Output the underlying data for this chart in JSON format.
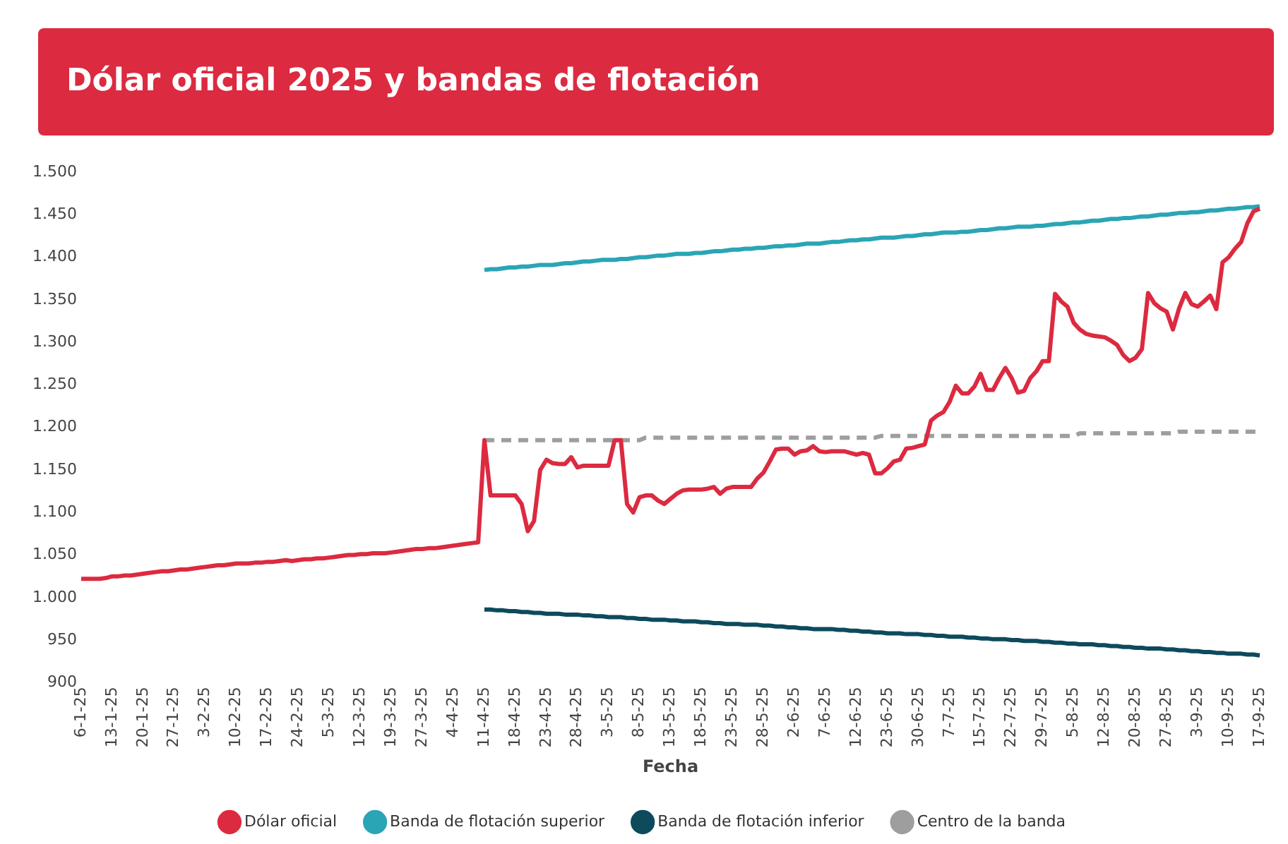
{
  "chart_data": {
    "type": "line",
    "title": "Dólar oficial 2025 y bandas de flotación",
    "xlabel": "Fecha",
    "categories": [
      "6-1-25",
      null,
      null,
      null,
      null,
      "13-1-25",
      null,
      null,
      null,
      null,
      "20-1-25",
      null,
      null,
      null,
      null,
      "27-1-25",
      null,
      null,
      null,
      null,
      "3-2-25",
      null,
      null,
      null,
      null,
      "10-2-25",
      null,
      null,
      null,
      null,
      "17-2-25",
      null,
      null,
      null,
      null,
      "24-2-25",
      null,
      null,
      null,
      null,
      "5-3-25",
      null,
      null,
      null,
      null,
      "12-3-25",
      null,
      null,
      null,
      null,
      "19-3-25",
      null,
      null,
      null,
      null,
      "27-3-25",
      null,
      null,
      null,
      null,
      "4-4-25",
      null,
      null,
      null,
      null,
      "11-4-25",
      null,
      null,
      null,
      null,
      "18-4-25",
      null,
      null,
      null,
      null,
      "23-4-25",
      null,
      null,
      null,
      null,
      "28-4-25",
      null,
      null,
      null,
      null,
      "3-5-25",
      null,
      null,
      null,
      null,
      "8-5-25",
      null,
      null,
      null,
      null,
      "13-5-25",
      null,
      null,
      null,
      null,
      "18-5-25",
      null,
      null,
      null,
      null,
      "23-5-25",
      null,
      null,
      null,
      null,
      "28-5-25",
      null,
      null,
      null,
      null,
      "2-6-25",
      null,
      null,
      null,
      null,
      "7-6-25",
      null,
      null,
      null,
      null,
      "12-6-25",
      null,
      null,
      null,
      null,
      "23-6-25",
      null,
      null,
      null,
      null,
      "30-6-25",
      null,
      null,
      null,
      null,
      "7-7-25",
      null,
      null,
      null,
      null,
      "15-7-25",
      null,
      null,
      null,
      null,
      "22-7-25",
      null,
      null,
      null,
      null,
      "29-7-25",
      null,
      null,
      null,
      null,
      "5-8-25",
      null,
      null,
      null,
      null,
      "12-8-25",
      null,
      null,
      null,
      null,
      "20-8-25",
      null,
      null,
      null,
      null,
      "27-8-25",
      null,
      null,
      null,
      null,
      "3-9-25",
      null,
      null,
      null,
      null,
      "10-9-25",
      null,
      null,
      null,
      null,
      "17-9-25"
    ],
    "ylim": [
      900,
      1500
    ],
    "yticks": [
      {
        "value": 900,
        "label": "900"
      },
      {
        "value": 950,
        "label": "950"
      },
      {
        "value": 1000,
        "label": "1.000"
      },
      {
        "value": 1050,
        "label": "1.050"
      },
      {
        "value": 1100,
        "label": "1.100"
      },
      {
        "value": 1150,
        "label": "1.150"
      },
      {
        "value": 1200,
        "label": "1.200"
      },
      {
        "value": 1250,
        "label": "1.250"
      },
      {
        "value": 1300,
        "label": "1.300"
      },
      {
        "value": 1350,
        "label": "1.350"
      },
      {
        "value": 1400,
        "label": "1.400"
      },
      {
        "value": 1450,
        "label": "1.450"
      },
      {
        "value": 1500,
        "label": "1.500"
      }
    ],
    "legend": "bottom",
    "series": [
      {
        "name": "Dólar oficial",
        "color": "#dc2a40",
        "line_style": "solid",
        "values": [
          1022,
          1022,
          1022,
          1022,
          1023,
          1025,
          1025,
          1026,
          1026,
          1027,
          1028,
          1029,
          1030,
          1031,
          1031,
          1032,
          1033,
          1033,
          1034,
          1035,
          1036,
          1037,
          1038,
          1038,
          1039,
          1040,
          1040,
          1040,
          1041,
          1041,
          1042,
          1042,
          1043,
          1044,
          1043,
          1044,
          1045,
          1045,
          1046,
          1046,
          1047,
          1048,
          1049,
          1050,
          1050,
          1051,
          1051,
          1052,
          1052,
          1052,
          1053,
          1054,
          1055,
          1056,
          1057,
          1057,
          1058,
          1058,
          1059,
          1060,
          1061,
          1062,
          1063,
          1064,
          1065,
          1185,
          1120,
          1120,
          1120,
          1120,
          1120,
          1110,
          1078,
          1090,
          1150,
          1162,
          1158,
          1157,
          1157,
          1165,
          1153,
          1155,
          1155,
          1155,
          1155,
          1155,
          1185,
          1185,
          1110,
          1100,
          1118,
          1120,
          1120,
          1114,
          1110,
          1116,
          1122,
          1126,
          1127,
          1127,
          1127,
          1128,
          1130,
          1122,
          1128,
          1130,
          1130,
          1130,
          1130,
          1140,
          1147,
          1160,
          1174,
          1175,
          1175,
          1168,
          1172,
          1173,
          1178,
          1172,
          1171,
          1172,
          1172,
          1172,
          1170,
          1168,
          1170,
          1168,
          1146,
          1146,
          1152,
          1160,
          1162,
          1175,
          1176,
          1178,
          1180,
          1208,
          1214,
          1218,
          1230,
          1249,
          1240,
          1240,
          1248,
          1263,
          1244,
          1244,
          1258,
          1270,
          1258,
          1241,
          1243,
          1258,
          1266,
          1278,
          1278,
          1357,
          1348,
          1342,
          1323,
          1315,
          1310,
          1308,
          1307,
          1306,
          1302,
          1297,
          1285,
          1278,
          1282,
          1292,
          1358,
          1346,
          1340,
          1336,
          1315,
          1340,
          1358,
          1345,
          1342,
          1348,
          1355,
          1339,
          1394,
          1400,
          1410,
          1418,
          1440,
          1454,
          1457
        ]
      },
      {
        "name": "Banda de flotación superior",
        "color": "#2aa5b5",
        "line_style": "solid",
        "values": [
          null,
          null,
          null,
          null,
          null,
          null,
          null,
          null,
          null,
          null,
          null,
          null,
          null,
          null,
          null,
          null,
          null,
          null,
          null,
          null,
          null,
          null,
          null,
          null,
          null,
          null,
          null,
          null,
          null,
          null,
          null,
          null,
          null,
          null,
          null,
          null,
          null,
          null,
          null,
          null,
          null,
          null,
          null,
          null,
          null,
          null,
          null,
          null,
          null,
          null,
          null,
          null,
          null,
          null,
          null,
          null,
          null,
          null,
          null,
          null,
          null,
          null,
          null,
          null,
          null,
          1385,
          1386,
          1386,
          1387,
          1388,
          1388,
          1389,
          1389,
          1390,
          1391,
          1391,
          1391,
          1392,
          1393,
          1393,
          1394,
          1395,
          1395,
          1396,
          1397,
          1397,
          1397,
          1398,
          1398,
          1399,
          1400,
          1400,
          1401,
          1402,
          1402,
          1403,
          1404,
          1404,
          1404,
          1405,
          1405,
          1406,
          1407,
          1407,
          1408,
          1409,
          1409,
          1410,
          1410,
          1411,
          1411,
          1412,
          1413,
          1413,
          1414,
          1414,
          1415,
          1416,
          1416,
          1416,
          1417,
          1418,
          1418,
          1419,
          1420,
          1420,
          1421,
          1421,
          1422,
          1423,
          1423,
          1423,
          1424,
          1425,
          1425,
          1426,
          1427,
          1427,
          1428,
          1429,
          1429,
          1429,
          1430,
          1430,
          1431,
          1432,
          1432,
          1433,
          1434,
          1434,
          1435,
          1436,
          1436,
          1436,
          1437,
          1437,
          1438,
          1439,
          1439,
          1440,
          1441,
          1441,
          1442,
          1443,
          1443,
          1444,
          1445,
          1445,
          1446,
          1446,
          1447,
          1448,
          1448,
          1449,
          1450,
          1450,
          1451,
          1452,
          1452,
          1453,
          1453,
          1454,
          1455,
          1455,
          1456,
          1457,
          1457,
          1458,
          1459,
          1459,
          1460
        ]
      },
      {
        "name": "Banda de flotación inferior",
        "color": "#0d4a5c",
        "line_style": "solid",
        "values": [
          null,
          null,
          null,
          null,
          null,
          null,
          null,
          null,
          null,
          null,
          null,
          null,
          null,
          null,
          null,
          null,
          null,
          null,
          null,
          null,
          null,
          null,
          null,
          null,
          null,
          null,
          null,
          null,
          null,
          null,
          null,
          null,
          null,
          null,
          null,
          null,
          null,
          null,
          null,
          null,
          null,
          null,
          null,
          null,
          null,
          null,
          null,
          null,
          null,
          null,
          null,
          null,
          null,
          null,
          null,
          null,
          null,
          null,
          null,
          null,
          null,
          null,
          null,
          null,
          null,
          986,
          986,
          985,
          985,
          984,
          984,
          983,
          983,
          982,
          982,
          981,
          981,
          981,
          980,
          980,
          980,
          979,
          979,
          978,
          978,
          977,
          977,
          977,
          976,
          976,
          975,
          975,
          974,
          974,
          974,
          973,
          973,
          972,
          972,
          972,
          971,
          971,
          970,
          970,
          969,
          969,
          969,
          968,
          968,
          968,
          967,
          967,
          966,
          966,
          965,
          965,
          964,
          964,
          963,
          963,
          963,
          963,
          962,
          962,
          961,
          961,
          960,
          960,
          959,
          959,
          958,
          958,
          958,
          957,
          957,
          957,
          956,
          956,
          955,
          955,
          954,
          954,
          954,
          953,
          953,
          952,
          952,
          951,
          951,
          951,
          950,
          950,
          949,
          949,
          949,
          948,
          948,
          947,
          947,
          946,
          946,
          945,
          945,
          945,
          944,
          944,
          943,
          943,
          942,
          942,
          941,
          941,
          940,
          940,
          940,
          939,
          939,
          938,
          938,
          937,
          937,
          936,
          936,
          935,
          935,
          934,
          934,
          934,
          933,
          933,
          932
        ]
      },
      {
        "name": "Centro de la banda",
        "color": "#9e9e9e",
        "line_style": "dashed",
        "values": [
          null,
          null,
          null,
          null,
          null,
          null,
          null,
          null,
          null,
          null,
          null,
          null,
          null,
          null,
          null,
          null,
          null,
          null,
          null,
          null,
          null,
          null,
          null,
          null,
          null,
          null,
          null,
          null,
          null,
          null,
          null,
          null,
          null,
          null,
          null,
          null,
          null,
          null,
          null,
          null,
          null,
          null,
          null,
          null,
          null,
          null,
          null,
          null,
          null,
          null,
          null,
          null,
          null,
          null,
          null,
          null,
          null,
          null,
          null,
          null,
          null,
          null,
          null,
          null,
          null,
          1185,
          1185,
          1185,
          1185,
          1185,
          1185,
          1185,
          1185,
          1185,
          1185,
          1185,
          1185,
          1185,
          1185,
          1185,
          1185,
          1185,
          1185,
          1185,
          1185,
          1185,
          1185,
          1185,
          1185,
          1185,
          1185,
          1188,
          1188,
          1188,
          1188,
          1188,
          1188,
          1188,
          1188,
          1188,
          1188,
          1188,
          1188,
          1188,
          1188,
          1188,
          1188,
          1188,
          1188,
          1188,
          1188,
          1188,
          1188,
          1188,
          1188,
          1188,
          1188,
          1188,
          1188,
          1188,
          1188,
          1188,
          1188,
          1188,
          1188,
          1188,
          1188,
          1188,
          1188,
          1190,
          1190,
          1190,
          1190,
          1190,
          1190,
          1190,
          1190,
          1190,
          1190,
          1190,
          1190,
          1190,
          1190,
          1190,
          1190,
          1190,
          1190,
          1190,
          1190,
          1190,
          1190,
          1190,
          1190,
          1190,
          1190,
          1190,
          1190,
          1190,
          1190,
          1190,
          1190,
          1193,
          1193,
          1193,
          1193,
          1193,
          1193,
          1193,
          1193,
          1193,
          1193,
          1193,
          1193,
          1193,
          1193,
          1193,
          1193,
          1195,
          1195,
          1195,
          1195,
          1195,
          1195,
          1195,
          1195,
          1195,
          1195,
          1195,
          1195,
          1195,
          1195
        ]
      }
    ]
  }
}
